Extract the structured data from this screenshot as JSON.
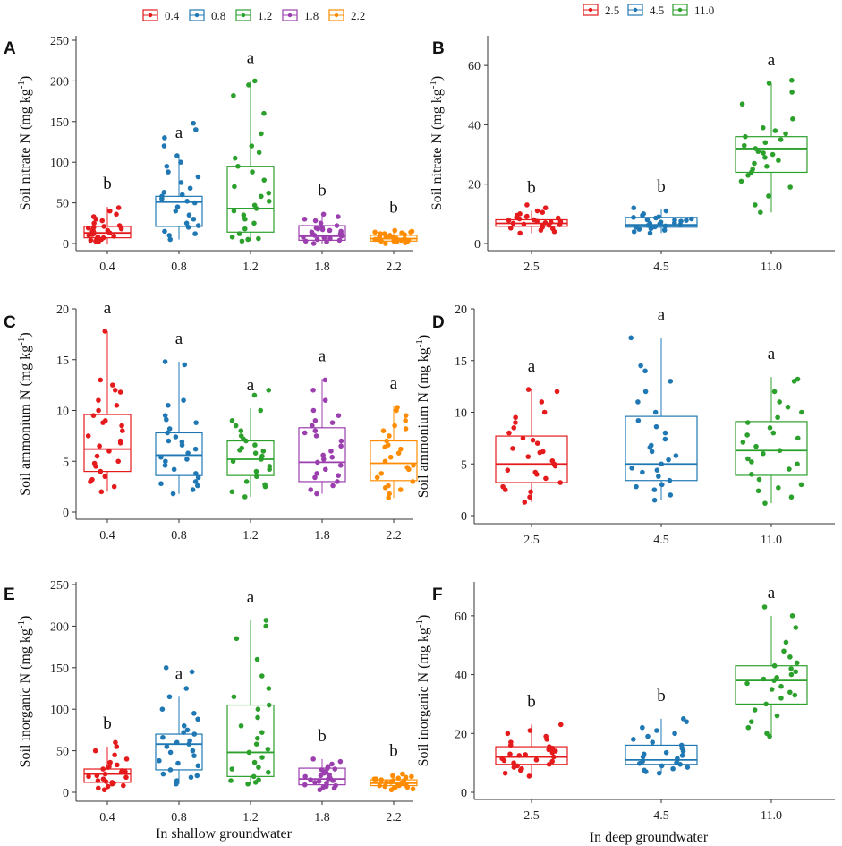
{
  "legends": {
    "shallow": [
      {
        "label": "0.4",
        "color": "#E41A1C"
      },
      {
        "label": "0.8",
        "color": "#1F78B4"
      },
      {
        "label": "1.2",
        "color": "#2CA02C"
      },
      {
        "label": "1.8",
        "color": "#9B3FAE"
      },
      {
        "label": "2.2",
        "color": "#FF8C00"
      }
    ],
    "deep": [
      {
        "label": "2.5",
        "color": "#E41A1C"
      },
      {
        "label": "4.5",
        "color": "#1F78B4"
      },
      {
        "label": "11.0",
        "color": "#2CA02C"
      }
    ]
  },
  "xtitles": {
    "shallow": "In shallow groundwater",
    "deep": "In deep groundwater"
  },
  "chart_data": [
    {
      "panel": "A",
      "type": "box",
      "group": "shallow",
      "ylabel_main": "Soil nitrate N (mg kg",
      "ylabel_sup": "-1",
      "ylabel_end": ")",
      "ylim": [
        0,
        250
      ],
      "yticks": [
        0,
        50,
        100,
        150,
        200,
        250
      ],
      "categories": [
        "0.4",
        "0.8",
        "1.2",
        "1.8",
        "2.2"
      ],
      "boxes": [
        {
          "q1": 7,
          "median": 13,
          "q3": 21,
          "wlo": 0,
          "whi": 45
        },
        {
          "q1": 21,
          "median": 51,
          "q3": 58,
          "wlo": 5,
          "whi": 108
        },
        {
          "q1": 14,
          "median": 43,
          "q3": 95,
          "wlo": 3,
          "whi": 200
        },
        {
          "q1": 4,
          "median": 9,
          "q3": 22,
          "wlo": 0,
          "whi": 37
        },
        {
          "q1": 3,
          "median": 6,
          "q3": 10,
          "wlo": 0,
          "whi": 16
        }
      ],
      "points": [
        [
          2,
          4,
          6,
          8,
          10,
          12,
          14,
          16,
          18,
          20,
          22,
          25,
          28,
          30,
          33,
          36,
          40,
          44,
          5,
          9,
          13,
          17,
          21,
          3,
          7,
          11,
          15,
          19
        ],
        [
          5,
          10,
          15,
          20,
          25,
          30,
          35,
          40,
          45,
          50,
          52,
          55,
          58,
          60,
          63,
          68,
          75,
          82,
          88,
          95,
          100,
          108,
          120,
          130,
          140,
          148,
          12,
          22
        ],
        [
          3,
          5,
          8,
          12,
          18,
          25,
          30,
          35,
          40,
          43,
          47,
          52,
          58,
          62,
          70,
          78,
          88,
          95,
          105,
          112,
          120,
          135,
          160,
          182,
          195,
          200,
          6
        ],
        [
          0,
          2,
          4,
          6,
          8,
          10,
          12,
          14,
          16,
          18,
          20,
          22,
          25,
          28,
          30,
          33,
          36,
          5,
          9,
          13,
          17,
          3,
          7,
          11,
          15,
          19
        ],
        [
          0,
          1,
          2,
          3,
          4,
          5,
          6,
          7,
          8,
          9,
          10,
          11,
          12,
          13,
          14,
          15,
          16,
          2,
          4,
          6,
          8,
          10,
          12,
          14,
          3,
          5
        ]
      ],
      "letters": [
        "b",
        "a",
        "a",
        "b",
        "b"
      ]
    },
    {
      "panel": "B",
      "type": "box",
      "group": "deep",
      "ylabel_main": "Soil nitrate N (mg kg",
      "ylabel_sup": "-1",
      "ylabel_end": ")",
      "ylim": [
        0,
        70
      ],
      "yticks": [
        0,
        20,
        40,
        60
      ],
      "categories": [
        "2.5",
        "4.5",
        "11.0"
      ],
      "boxes": [
        {
          "q1": 5.8,
          "median": 6.8,
          "q3": 8,
          "wlo": 3.5,
          "whi": 11
        },
        {
          "q1": 5.5,
          "median": 6.3,
          "q3": 8.8,
          "wlo": 3.5,
          "whi": 11.5
        },
        {
          "q1": 24,
          "median": 32,
          "q3": 36,
          "wlo": 10.5,
          "whi": 54
        }
      ],
      "points": [
        [
          3.5,
          4,
          4.5,
          5,
          5.5,
          6,
          6.3,
          6.5,
          6.8,
          7,
          7.2,
          7.5,
          7.8,
          8,
          8.3,
          8.6,
          9,
          9.5,
          10,
          10.5,
          11,
          12,
          13,
          5.2,
          6.1,
          7.4,
          8.8,
          9.2
        ],
        [
          3.5,
          4,
          4.5,
          5,
          5.3,
          5.6,
          5.9,
          6.1,
          6.3,
          6.6,
          6.9,
          7.2,
          7.5,
          7.8,
          8,
          8.3,
          8.6,
          9,
          9.5,
          10,
          11,
          12,
          4.8,
          5.5,
          6.8,
          7.9,
          8.8
        ],
        [
          10.5,
          13,
          16,
          19,
          21,
          23,
          24,
          25,
          26,
          27,
          28,
          29,
          30,
          31,
          32,
          33,
          34,
          35,
          36,
          37,
          38,
          39,
          42,
          47,
          51,
          54,
          55,
          30.5
        ]
      ],
      "letters": [
        "b",
        "b",
        "a"
      ]
    },
    {
      "panel": "C",
      "type": "box",
      "group": "shallow",
      "ylabel_main": "Soil ammonium N (mg kg",
      "ylabel_sup": "-1",
      "ylabel_end": ")",
      "ylim": [
        0,
        20
      ],
      "yticks": [
        0,
        5,
        10,
        15,
        20
      ],
      "categories": [
        "0.4",
        "0.8",
        "1.2",
        "1.8",
        "2.2"
      ],
      "boxes": [
        {
          "q1": 4,
          "median": 6.2,
          "q3": 9.6,
          "wlo": 2,
          "whi": 17.8
        },
        {
          "q1": 3.6,
          "median": 5.6,
          "q3": 7.8,
          "wlo": 1.8,
          "whi": 14.8
        },
        {
          "q1": 3.6,
          "median": 5.2,
          "q3": 7,
          "wlo": 1.5,
          "whi": 10.2
        },
        {
          "q1": 3,
          "median": 4.9,
          "q3": 8.3,
          "wlo": 1.8,
          "whi": 13.1
        },
        {
          "q1": 3.1,
          "median": 4.8,
          "q3": 7,
          "wlo": 1.4,
          "whi": 10.4
        }
      ],
      "points": [
        [
          2,
          2.5,
          3,
          3.5,
          4,
          4.5,
          5,
          5.5,
          6,
          6.5,
          7,
          7.5,
          8,
          8.5,
          9,
          9.5,
          10,
          10.5,
          11,
          12,
          12.5,
          13,
          17.8,
          3.2,
          4.8,
          6.8,
          8.8,
          11.8
        ],
        [
          1.8,
          2.2,
          2.6,
          3,
          3.4,
          3.8,
          4.2,
          4.6,
          5,
          5.4,
          5.8,
          6.2,
          6.6,
          7,
          7.4,
          7.8,
          8.2,
          8.8,
          9.5,
          10.5,
          11,
          14.5,
          14.8,
          2.8,
          5.2,
          6.9,
          9.1
        ],
        [
          1.5,
          2,
          2.5,
          3,
          3.5,
          4,
          4.5,
          5,
          5.2,
          5.5,
          5.8,
          6,
          6.3,
          6.6,
          7,
          7.5,
          8,
          8.5,
          9,
          10,
          11.5,
          12,
          2.7,
          4.2,
          6.1,
          7.2
        ],
        [
          1.8,
          2.2,
          2.6,
          3,
          3.4,
          3.8,
          4.2,
          4.6,
          4.9,
          5.2,
          5.6,
          6,
          6.5,
          7,
          7.5,
          8,
          8.5,
          9,
          9.5,
          10,
          11,
          12,
          13,
          3.6,
          5.4,
          7.8,
          8.8
        ],
        [
          1.4,
          1.8,
          2.2,
          2.6,
          3,
          3.4,
          3.8,
          4.2,
          4.6,
          5,
          5.4,
          5.8,
          6.2,
          6.6,
          7,
          7.5,
          8,
          8.5,
          9,
          9.5,
          10,
          10.3,
          2.4,
          4.4,
          6.4,
          8.2
        ]
      ],
      "letters": [
        "a",
        "a",
        "a",
        "a",
        "a"
      ]
    },
    {
      "panel": "D",
      "type": "box",
      "group": "deep",
      "ylabel_main": "Soil ammonium N (mg kg",
      "ylabel_sup": "-1",
      "ylabel_end": ")",
      "ylim": [
        0,
        20
      ],
      "yticks": [
        0,
        5,
        10,
        15,
        20
      ],
      "categories": [
        "2.5",
        "4.5",
        "11.0"
      ],
      "boxes": [
        {
          "q1": 3.2,
          "median": 5,
          "q3": 7.7,
          "wlo": 1.3,
          "whi": 12.2
        },
        {
          "q1": 3.4,
          "median": 5,
          "q3": 9.6,
          "wlo": 1.5,
          "whi": 17.2
        },
        {
          "q1": 3.9,
          "median": 6.3,
          "q3": 9.1,
          "wlo": 1.2,
          "whi": 13.4
        }
      ],
      "points": [
        [
          1.3,
          1.8,
          2.3,
          2.8,
          3.2,
          3.6,
          4,
          4.4,
          4.8,
          5,
          5.3,
          5.7,
          6.1,
          6.5,
          7,
          7.5,
          8,
          8.5,
          9,
          10,
          11,
          12,
          12.2,
          2.5,
          4.2,
          6.2,
          7.3,
          9.5
        ],
        [
          1.5,
          2,
          2.5,
          3,
          3.4,
          3.8,
          4.2,
          4.6,
          5,
          5.4,
          5.8,
          6.2,
          6.8,
          7.4,
          8,
          8.6,
          9.2,
          10,
          11,
          12,
          13,
          14,
          14.5,
          17.2,
          2.8,
          4.4,
          6.6
        ],
        [
          1.2,
          1.8,
          2.4,
          3,
          3.5,
          4,
          4.5,
          5,
          5.5,
          6,
          6.3,
          6.7,
          7.1,
          7.5,
          8,
          8.5,
          9,
          9.5,
          10,
          10.5,
          11,
          12,
          13,
          13.2,
          2.7,
          5.2,
          7.8
        ]
      ],
      "letters": [
        "a",
        "a",
        "a"
      ]
    },
    {
      "panel": "E",
      "type": "box",
      "group": "shallow",
      "ylabel_main": "Soil inorganic N (mg kg",
      "ylabel_sup": "-1",
      "ylabel_end": ")",
      "ylim": [
        0,
        250
      ],
      "yticks": [
        0,
        50,
        100,
        150,
        200,
        250
      ],
      "categories": [
        "0.4",
        "0.8",
        "1.2",
        "1.8",
        "2.2"
      ],
      "boxes": [
        {
          "q1": 12,
          "median": 22,
          "q3": 28,
          "wlo": 3,
          "whi": 55
        },
        {
          "q1": 27,
          "median": 58,
          "q3": 70,
          "wlo": 10,
          "whi": 115
        },
        {
          "q1": 19,
          "median": 48,
          "q3": 105,
          "wlo": 10,
          "whi": 207
        },
        {
          "q1": 9,
          "median": 16,
          "q3": 29,
          "wlo": 3,
          "whi": 40
        },
        {
          "q1": 8,
          "median": 11,
          "q3": 15,
          "wlo": 3,
          "whi": 22
        }
      ],
      "points": [
        [
          3,
          5,
          8,
          10,
          12,
          14,
          16,
          18,
          20,
          22,
          24,
          26,
          28,
          30,
          33,
          36,
          40,
          45,
          50,
          55,
          60,
          7,
          13,
          19,
          25,
          31,
          11
        ],
        [
          10,
          14,
          18,
          22,
          27,
          32,
          38,
          44,
          50,
          55,
          58,
          62,
          66,
          70,
          75,
          80,
          88,
          95,
          100,
          115,
          125,
          145,
          150,
          20,
          35,
          48,
          60,
          72
        ],
        [
          10,
          12,
          15,
          19,
          24,
          30,
          36,
          42,
          48,
          52,
          58,
          65,
          72,
          80,
          90,
          100,
          105,
          115,
          125,
          140,
          160,
          185,
          200,
          207,
          14,
          28
        ],
        [
          3,
          5,
          7,
          9,
          11,
          13,
          15,
          17,
          19,
          21,
          23,
          25,
          27,
          29,
          31,
          34,
          37,
          40,
          8,
          12,
          16,
          20,
          24,
          28,
          6,
          14
        ],
        [
          3,
          4,
          5,
          6,
          7,
          8,
          9,
          10,
          11,
          12,
          13,
          14,
          15,
          16,
          17,
          18,
          19,
          20,
          22,
          6,
          8,
          10,
          12,
          14,
          16
        ]
      ],
      "letters": [
        "b",
        "a",
        "a",
        "b",
        "b"
      ]
    },
    {
      "panel": "F",
      "type": "box",
      "group": "deep",
      "ylabel_main": "Soil inorganic N (mg kg",
      "ylabel_sup": "-1",
      "ylabel_end": ")",
      "ylim": [
        0,
        70
      ],
      "yticks": [
        0,
        20,
        40,
        60
      ],
      "categories": [
        "2.5",
        "4.5",
        "11.0"
      ],
      "boxes": [
        {
          "q1": 9.5,
          "median": 12,
          "q3": 15.5,
          "wlo": 5.5,
          "whi": 23
        },
        {
          "q1": 9.5,
          "median": 11,
          "q3": 16,
          "wlo": 6.5,
          "whi": 25
        },
        {
          "q1": 30,
          "median": 38,
          "q3": 43,
          "wlo": 19,
          "whi": 60
        }
      ],
      "points": [
        [
          5.5,
          6.5,
          7.5,
          8.5,
          9,
          9.5,
          10,
          10.5,
          11,
          11.5,
          12,
          12.5,
          13,
          13.5,
          14,
          14.5,
          15,
          16,
          17,
          18,
          19,
          20,
          21,
          23,
          8,
          12.8,
          15.5,
          10.8
        ],
        [
          6.5,
          7,
          7.5,
          8,
          8.5,
          9,
          9.5,
          10,
          10.5,
          11,
          11.5,
          12,
          12.5,
          13,
          14,
          15,
          16,
          17,
          18,
          19,
          20,
          21,
          22,
          24,
          25,
          9.8,
          13.5
        ],
        [
          19,
          20,
          22,
          24,
          26,
          28,
          30,
          32,
          34,
          35,
          36,
          37,
          38,
          39,
          40,
          41,
          42,
          43,
          44,
          46,
          48,
          51,
          56,
          60,
          63,
          33,
          38.5
        ]
      ],
      "letters": [
        "b",
        "b",
        "a"
      ]
    }
  ]
}
